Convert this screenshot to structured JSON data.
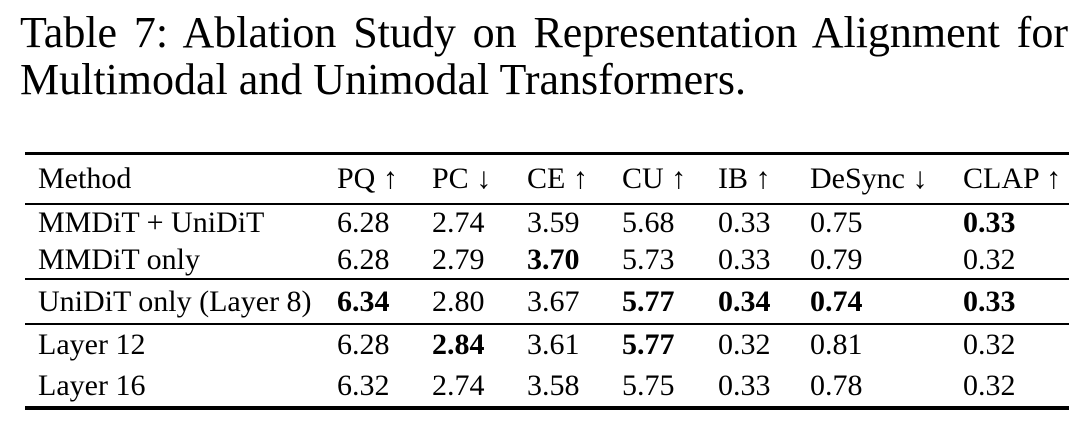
{
  "caption": {
    "text": "Table 7: Ablation Study on Representation Alignment for Multimodal and Unimodal Transformers."
  },
  "table": {
    "headers": [
      "Method",
      "PQ ↑",
      "PC ↓",
      "CE ↑",
      "CU ↑",
      "IB ↑",
      "DeSync ↓",
      "CLAP ↑"
    ],
    "rows": [
      {
        "cells": [
          {
            "v": "MMDiT + UniDiT"
          },
          {
            "v": "6.28"
          },
          {
            "v": "2.74"
          },
          {
            "v": "3.59"
          },
          {
            "v": "5.68"
          },
          {
            "v": "0.33"
          },
          {
            "v": "0.75"
          },
          {
            "v": "0.33",
            "b": true
          }
        ]
      },
      {
        "cells": [
          {
            "v": "MMDiT only"
          },
          {
            "v": "6.28"
          },
          {
            "v": "2.79"
          },
          {
            "v": "3.70",
            "b": true
          },
          {
            "v": "5.73"
          },
          {
            "v": "0.33"
          },
          {
            "v": "0.79"
          },
          {
            "v": "0.32"
          }
        ]
      },
      {
        "cells": [
          {
            "v": "UniDiT only (Layer 8)"
          },
          {
            "v": "6.34",
            "b": true
          },
          {
            "v": "2.80"
          },
          {
            "v": "3.67"
          },
          {
            "v": "5.77",
            "b": true
          },
          {
            "v": "0.34",
            "b": true
          },
          {
            "v": "0.74",
            "b": true
          },
          {
            "v": "0.33",
            "b": true
          }
        ]
      },
      {
        "cells": [
          {
            "v": "Layer 12"
          },
          {
            "v": "6.28"
          },
          {
            "v": "2.84",
            "b": true
          },
          {
            "v": "3.61"
          },
          {
            "v": "5.77",
            "b": true
          },
          {
            "v": "0.32"
          },
          {
            "v": "0.81"
          },
          {
            "v": "0.32"
          }
        ]
      },
      {
        "cells": [
          {
            "v": "Layer 16"
          },
          {
            "v": "6.32"
          },
          {
            "v": "2.74"
          },
          {
            "v": "3.58"
          },
          {
            "v": "5.75"
          },
          {
            "v": "0.33"
          },
          {
            "v": "0.78"
          },
          {
            "v": "0.32"
          }
        ]
      }
    ]
  },
  "colors": {
    "text": "#000000",
    "background": "#ffffff",
    "rule": "#000000"
  }
}
